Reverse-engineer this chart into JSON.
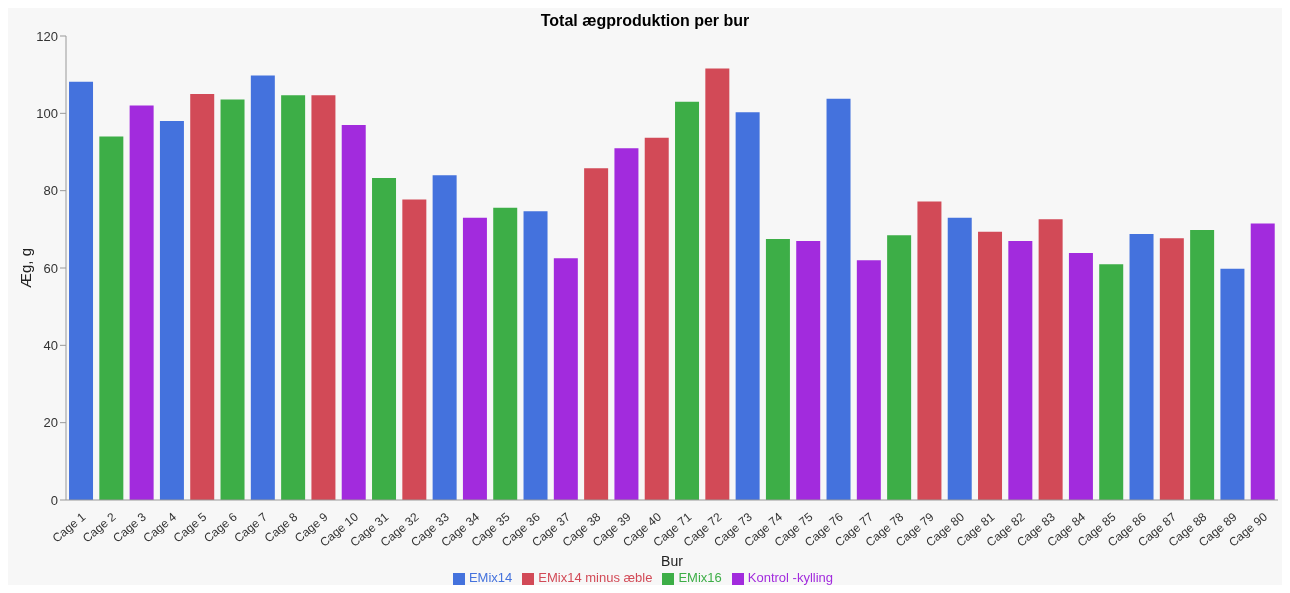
{
  "chart_data": {
    "type": "bar",
    "title": "Total ægproduktion per bur",
    "xlabel": "Bur",
    "ylabel": "Æg, g",
    "categories": [
      "Cage 1",
      "Cage 2",
      "Cage 3",
      "Cage 4",
      "Cage 5",
      "Cage 6",
      "Cage 7",
      "Cage 8",
      "Cage 9",
      "Cage 10",
      "Cage 31",
      "Cage 32",
      "Cage 33",
      "Cage 34",
      "Cage 35",
      "Cage 36",
      "Cage 37",
      "Cage 38",
      "Cage 39",
      "Cage 40",
      "Cage 71",
      "Cage 72",
      "Cage 73",
      "Cage 74",
      "Cage 75",
      "Cage 76",
      "Cage 77",
      "Cage 78",
      "Cage 79",
      "Cage 80",
      "Cage 81",
      "Cage 82",
      "Cage 83",
      "Cage 84",
      "Cage 85",
      "Cage 86",
      "Cage 87",
      "Cage 88",
      "Cage 89",
      "Cage 90"
    ],
    "stacked": true,
    "series": [
      {
        "name": "EMix14",
        "color": "#4472dd",
        "values": [
          108.2,
          null,
          null,
          98,
          null,
          null,
          109.8,
          null,
          null,
          null,
          null,
          null,
          84,
          null,
          null,
          74.7,
          null,
          null,
          null,
          null,
          null,
          null,
          100.3,
          null,
          null,
          103.8,
          null,
          null,
          null,
          73,
          null,
          null,
          null,
          null,
          null,
          68.8,
          null,
          null,
          59.8,
          null
        ]
      },
      {
        "name": "EMix14 minus æble",
        "color": "#d24a57",
        "values": [
          null,
          null,
          null,
          null,
          105,
          null,
          null,
          null,
          104.7,
          null,
          null,
          77.7,
          null,
          null,
          null,
          null,
          null,
          85.8,
          null,
          93.7,
          null,
          111.6,
          null,
          null,
          null,
          null,
          null,
          null,
          77.2,
          null,
          69.4,
          null,
          72.6,
          null,
          null,
          null,
          67.7,
          null,
          null,
          null
        ]
      },
      {
        "name": "EMix16",
        "color": "#3dae47",
        "values": [
          null,
          94,
          null,
          null,
          null,
          103.6,
          null,
          104.7,
          null,
          null,
          83.3,
          null,
          null,
          null,
          75.6,
          null,
          null,
          null,
          null,
          null,
          103,
          null,
          null,
          67.5,
          null,
          null,
          null,
          68.5,
          null,
          null,
          null,
          null,
          null,
          null,
          61,
          null,
          null,
          69.8,
          null,
          null
        ]
      },
      {
        "name": "Kontrol -kylling",
        "color": "#a22bdd",
        "values": [
          null,
          null,
          102,
          null,
          null,
          null,
          null,
          null,
          null,
          97,
          null,
          null,
          null,
          73,
          null,
          null,
          62.5,
          null,
          91,
          null,
          null,
          null,
          null,
          null,
          67,
          null,
          62,
          null,
          null,
          null,
          null,
          67,
          null,
          63.9,
          null,
          null,
          null,
          null,
          null,
          71.5
        ]
      }
    ],
    "ylim": [
      0,
      120
    ],
    "yticks": [
      0,
      20,
      40,
      60,
      80,
      100,
      120
    ],
    "grid": false,
    "legend": "bottom"
  }
}
